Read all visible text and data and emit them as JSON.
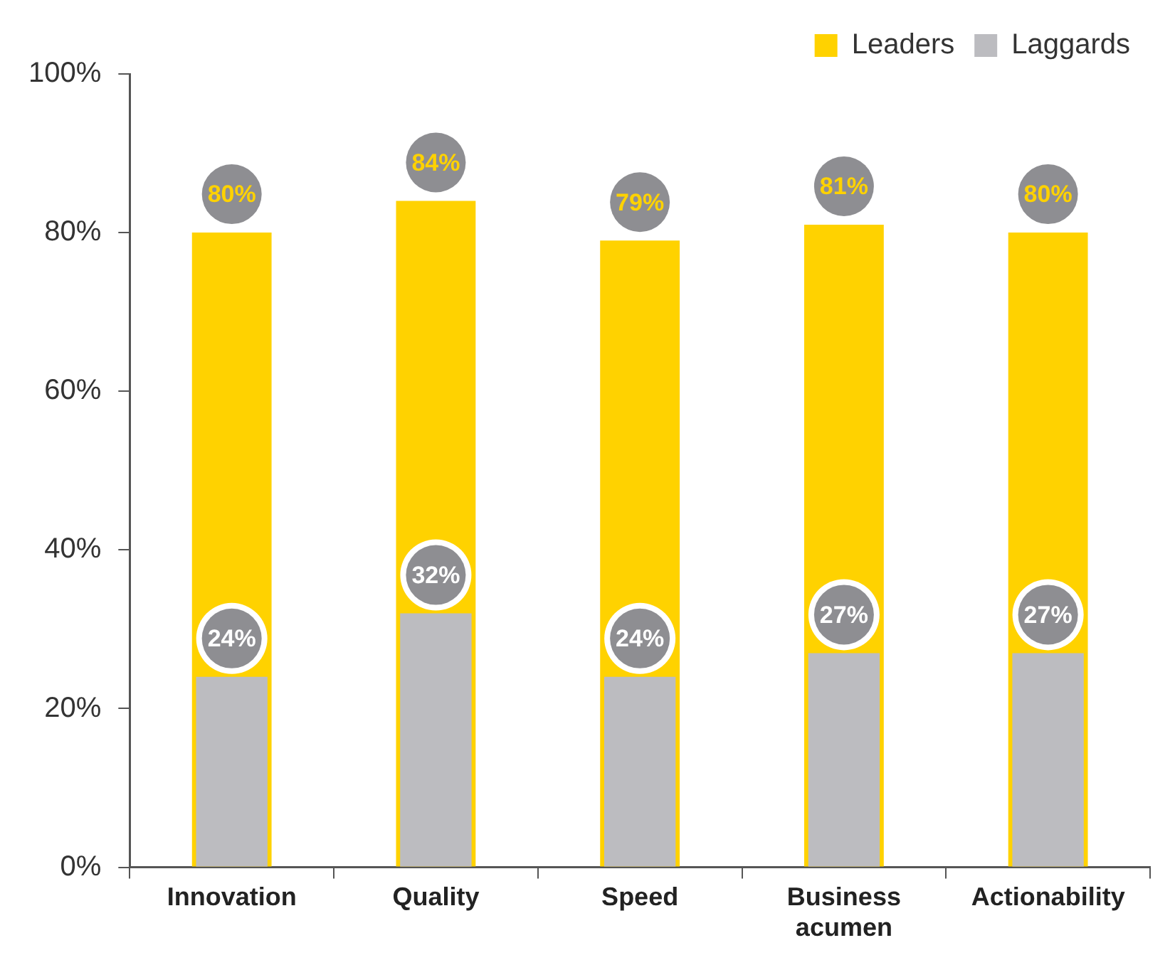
{
  "chart_data": {
    "type": "bar",
    "categories": [
      "Innovation",
      "Quality",
      "Speed",
      "Business acumen",
      "Actionability"
    ],
    "series": [
      {
        "name": "Leaders",
        "color": "#ffd200",
        "values": [
          80,
          84,
          79,
          81,
          80
        ],
        "value_labels": [
          "80%",
          "84%",
          "79%",
          "81%",
          "80%"
        ]
      },
      {
        "name": "Laggards",
        "color": "#bcbcc0",
        "values": [
          24,
          32,
          24,
          27,
          27
        ],
        "value_labels": [
          "24%",
          "32%",
          "24%",
          "27%",
          "27%"
        ]
      }
    ],
    "ylim": [
      0,
      100
    ],
    "yticks": [
      {
        "value": 0,
        "label": "0%"
      },
      {
        "value": 20,
        "label": "20%"
      },
      {
        "value": 40,
        "label": "40%"
      },
      {
        "value": 60,
        "label": "60%"
      },
      {
        "value": 80,
        "label": "80%"
      },
      {
        "value": 100,
        "label": "100%"
      }
    ],
    "grid": false,
    "legend": "top right"
  }
}
